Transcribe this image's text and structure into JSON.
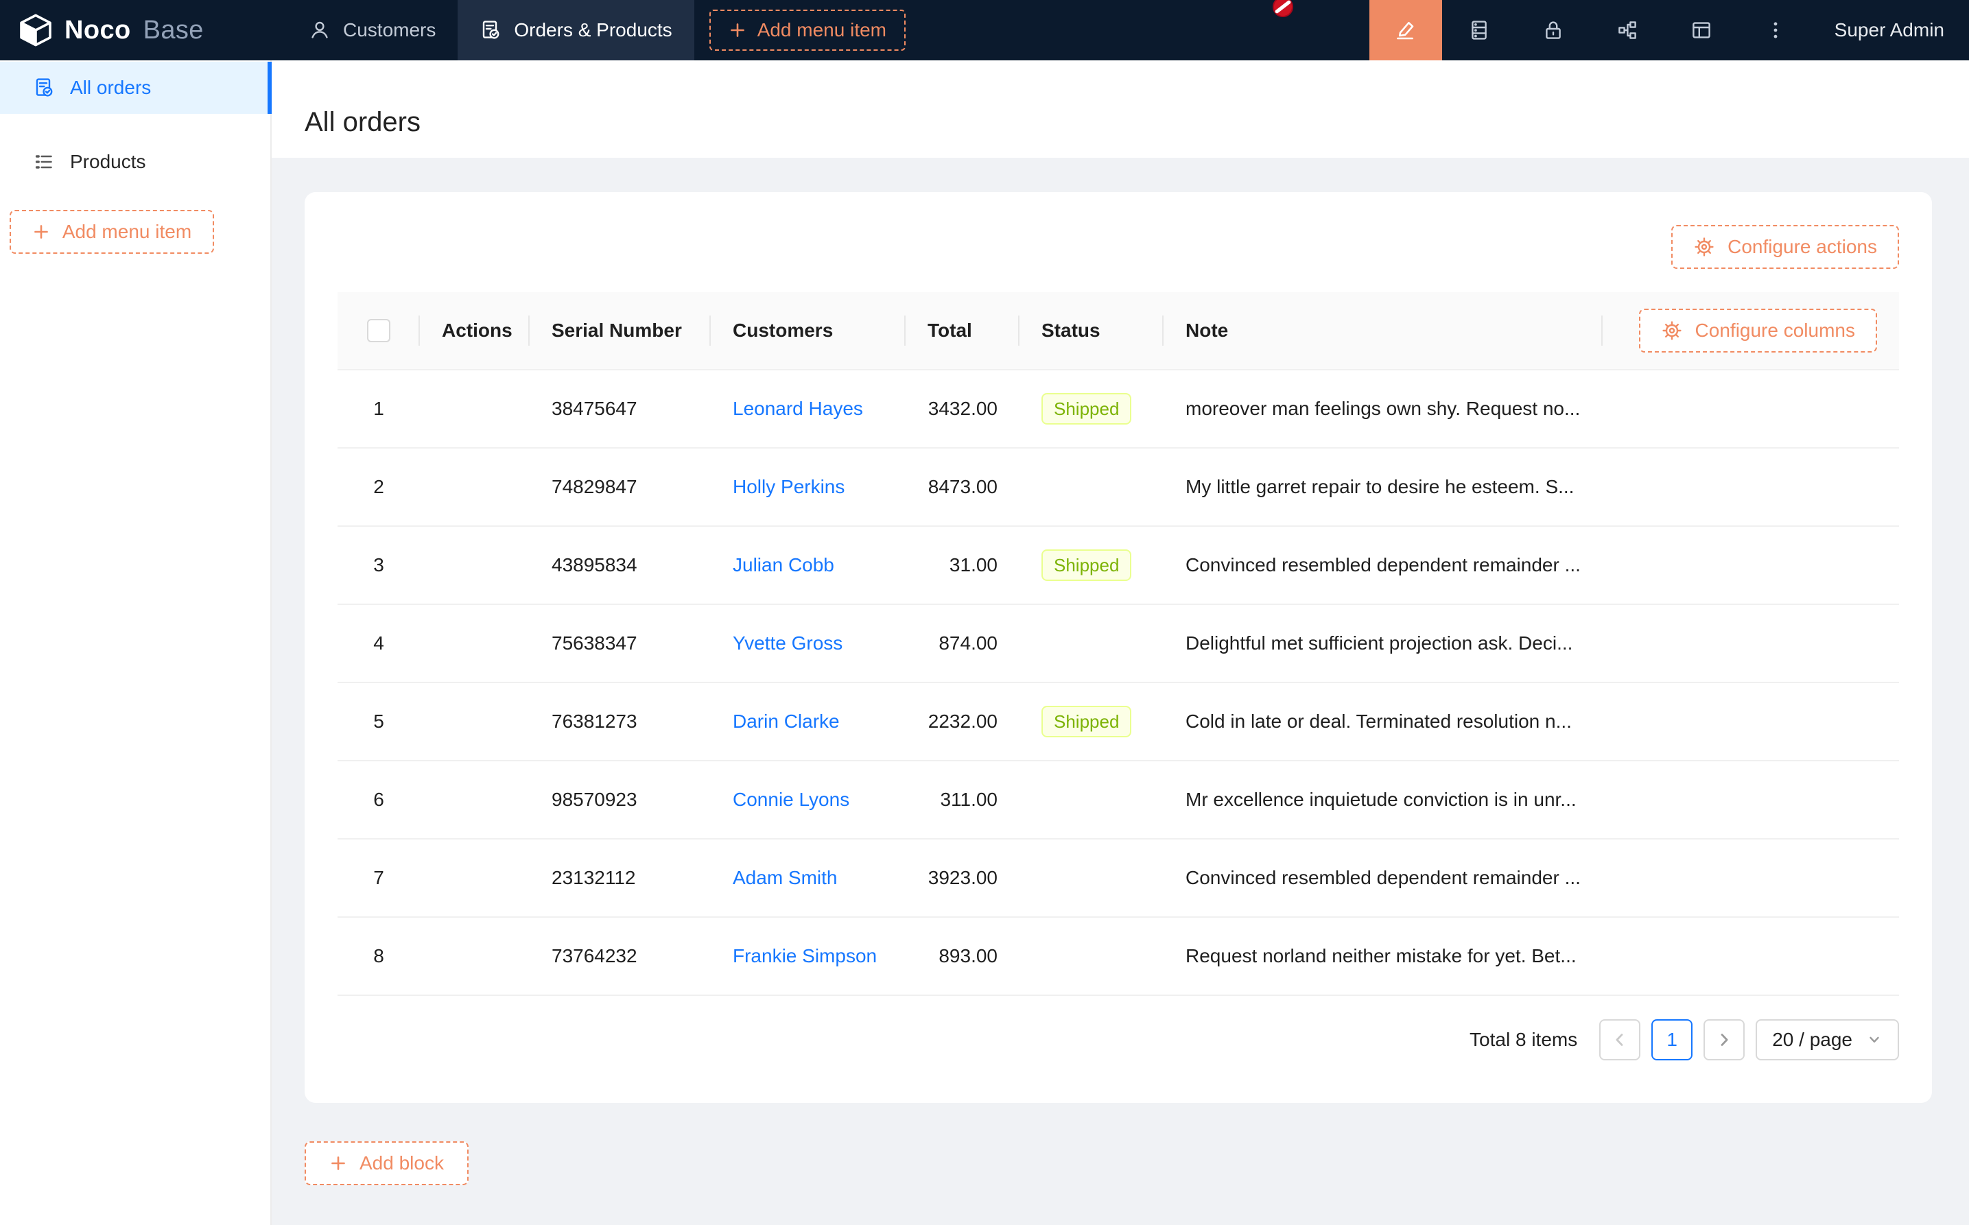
{
  "topbar": {
    "logo_bold": "Noco",
    "logo_light": "Base",
    "tabs": [
      {
        "label": "Customers",
        "icon": "user"
      },
      {
        "label": "Orders & Products",
        "icon": "file-check"
      }
    ],
    "add_menu_item_label": "Add menu item",
    "icon_buttons": [
      {
        "name": "collections-database-icon",
        "glyph": "database"
      },
      {
        "name": "lock-icon",
        "glyph": "lock"
      },
      {
        "name": "workflow-partition-icon",
        "glyph": "partition"
      },
      {
        "name": "layout-icon",
        "glyph": "layout"
      },
      {
        "name": "more-ellipsis-icon",
        "glyph": "ellipsis"
      }
    ],
    "user": "Super Admin"
  },
  "sidebar": {
    "items": [
      {
        "label": "All orders",
        "icon": "file-check",
        "active": true
      },
      {
        "label": "Products",
        "icon": "list",
        "active": false
      }
    ],
    "add_menu_item_label": "Add menu item"
  },
  "page": {
    "title": "All orders"
  },
  "card": {
    "configure_actions_label": "Configure actions",
    "table": {
      "configure_columns_label": "Configure columns",
      "columns": [
        "",
        "Actions",
        "Serial Number",
        "Customers",
        "Total",
        "Status",
        "Note"
      ],
      "rows": [
        {
          "index": "1",
          "serial": "38475647",
          "customer": "Leonard Hayes",
          "total": "3432.00",
          "status": "Shipped",
          "note": "moreover man feelings own shy. Request no..."
        },
        {
          "index": "2",
          "serial": "74829847",
          "customer": "Holly Perkins",
          "total": "8473.00",
          "status": "",
          "note": "My little garret repair to desire he esteem. S..."
        },
        {
          "index": "3",
          "serial": "43895834",
          "customer": "Julian Cobb",
          "total": "31.00",
          "status": "Shipped",
          "note": "Convinced resembled dependent remainder ..."
        },
        {
          "index": "4",
          "serial": "75638347",
          "customer": "Yvette Gross",
          "total": "874.00",
          "status": "",
          "note": "Delightful met sufficient projection ask. Deci..."
        },
        {
          "index": "5",
          "serial": "76381273",
          "customer": "Darin Clarke",
          "total": "2232.00",
          "status": "Shipped",
          "note": "Cold in late or deal. Terminated resolution n..."
        },
        {
          "index": "6",
          "serial": "98570923",
          "customer": "Connie Lyons",
          "total": "311.00",
          "status": "",
          "note": "Mr excellence inquietude conviction is in unr..."
        },
        {
          "index": "7",
          "serial": "23132112",
          "customer": "Adam Smith",
          "total": "3923.00",
          "status": "",
          "note": "Convinced resembled dependent remainder ..."
        },
        {
          "index": "8",
          "serial": "73764232",
          "customer": "Frankie Simpson",
          "total": "893.00",
          "status": "",
          "note": "Request norland neither mistake for yet. Bet..."
        }
      ]
    },
    "pagination": {
      "total_label": "Total 8 items",
      "page": "1",
      "page_size": "20 / page"
    }
  },
  "add_block_label": "Add block",
  "colors": {
    "topbar_bg": "#0b1a2d",
    "topbar_active_tab_bg": "#1f2e44",
    "accent_orange": "#f18b62",
    "ui_editor_button_bg": "#ef8a63",
    "primary_blue": "#1677ff",
    "sidebar_active_bg": "#e6f4ff",
    "content_bg": "#f0f2f5",
    "status_shipped_bg": "#fcffe6",
    "status_shipped_border": "#eaff8f",
    "status_shipped_text": "#7cb305"
  }
}
